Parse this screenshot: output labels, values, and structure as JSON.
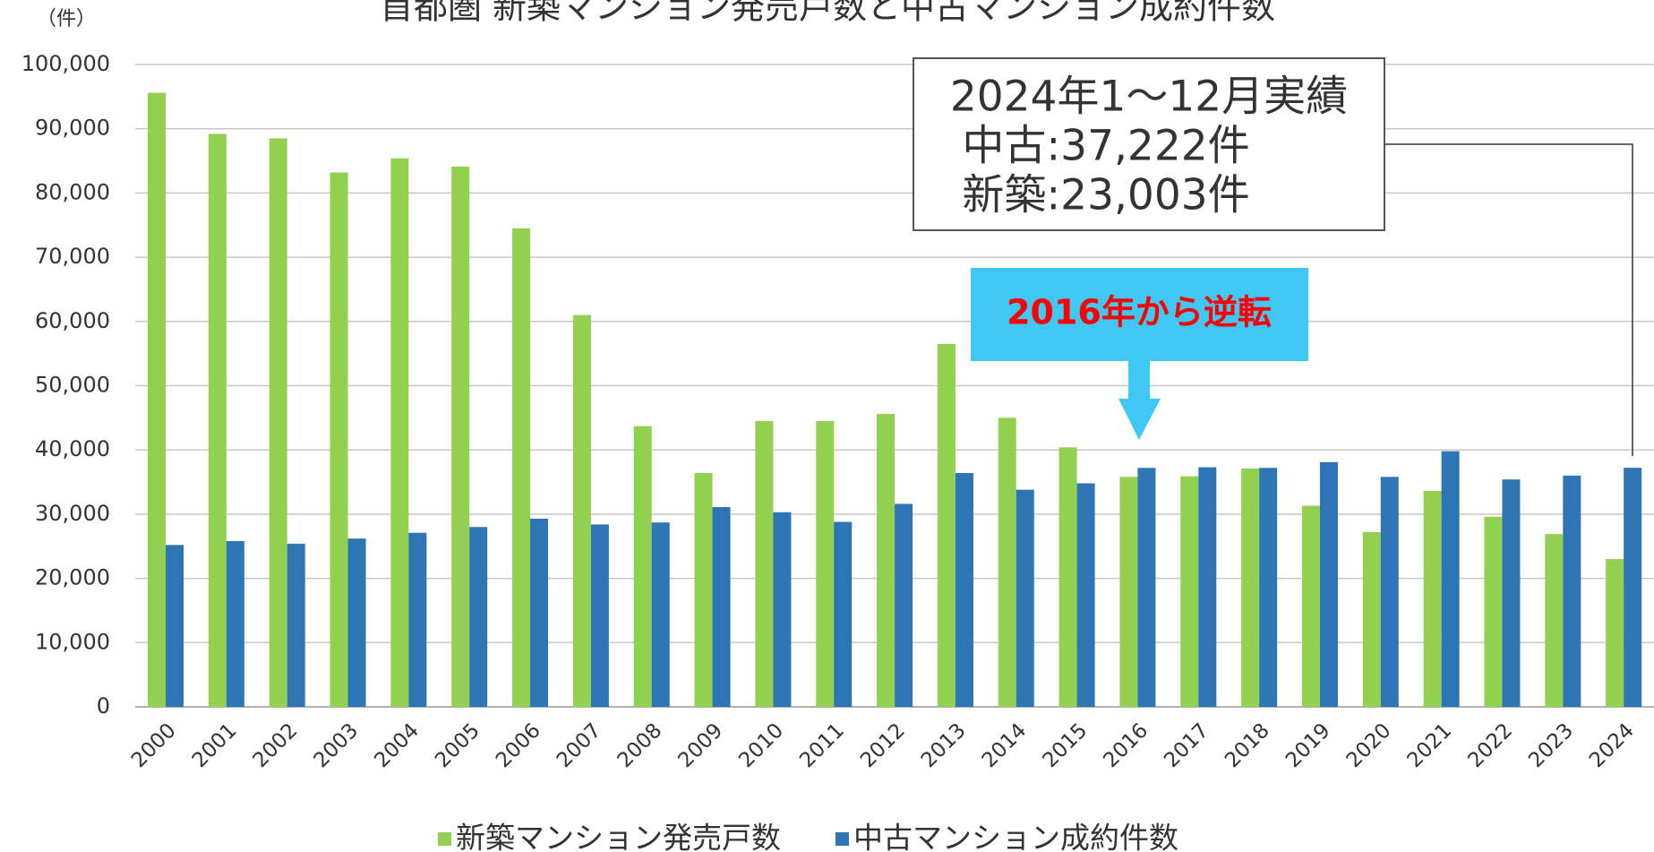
{
  "chart_data": {
    "type": "bar",
    "title": "首都圏 新築マンション発売戸数と中古マンション成約件数",
    "y_unit": "（件）",
    "categories": [
      "2000",
      "2001",
      "2002",
      "2003",
      "2004",
      "2005",
      "2006",
      "2007",
      "2008",
      "2009",
      "2010",
      "2011",
      "2012",
      "2013",
      "2014",
      "2015",
      "2016",
      "2017",
      "2018",
      "2019",
      "2020",
      "2021",
      "2022",
      "2023",
      "2024"
    ],
    "series": [
      {
        "name": "新築マンション発売戸数",
        "color": "#92d050",
        "values": [
          95600,
          89200,
          88500,
          83200,
          85400,
          84100,
          74500,
          61000,
          43700,
          36400,
          44500,
          44500,
          45600,
          56500,
          45000,
          40400,
          35800,
          35900,
          37100,
          31300,
          27200,
          33600,
          29600,
          26900,
          23003
        ]
      },
      {
        "name": "中古マンション成約件数",
        "color": "#2e75b6",
        "values": [
          25200,
          25800,
          25400,
          26200,
          27100,
          28000,
          29300,
          28400,
          28700,
          31100,
          30300,
          28800,
          31600,
          36400,
          33800,
          34800,
          37200,
          37300,
          37200,
          38100,
          35800,
          39800,
          35400,
          36000,
          37222
        ]
      }
    ],
    "ylim": [
      0,
      100000
    ],
    "yticks": [
      0,
      {
        "value": 10000,
        "label": "10,000"
      },
      {
        "value": 20000,
        "label": "20,000"
      },
      {
        "value": 30000,
        "label": "30,000"
      },
      {
        "value": 40000,
        "label": "40,000"
      },
      {
        "value": 50000,
        "label": "50,000"
      },
      {
        "value": 60000,
        "label": "60,000"
      },
      {
        "value": 70000,
        "label": "70,000"
      },
      {
        "value": 80000,
        "label": "80,000"
      },
      {
        "value": 90000,
        "label": "90,000"
      },
      {
        "value": 100000,
        "label": "100,000"
      }
    ],
    "grid": true,
    "legend": "bottom",
    "annotations": {
      "box_lines": [
        "2024年1～12月実績",
        "中古:37,222件",
        "新築:23,003件"
      ],
      "callout": "2016年から逆転"
    }
  }
}
